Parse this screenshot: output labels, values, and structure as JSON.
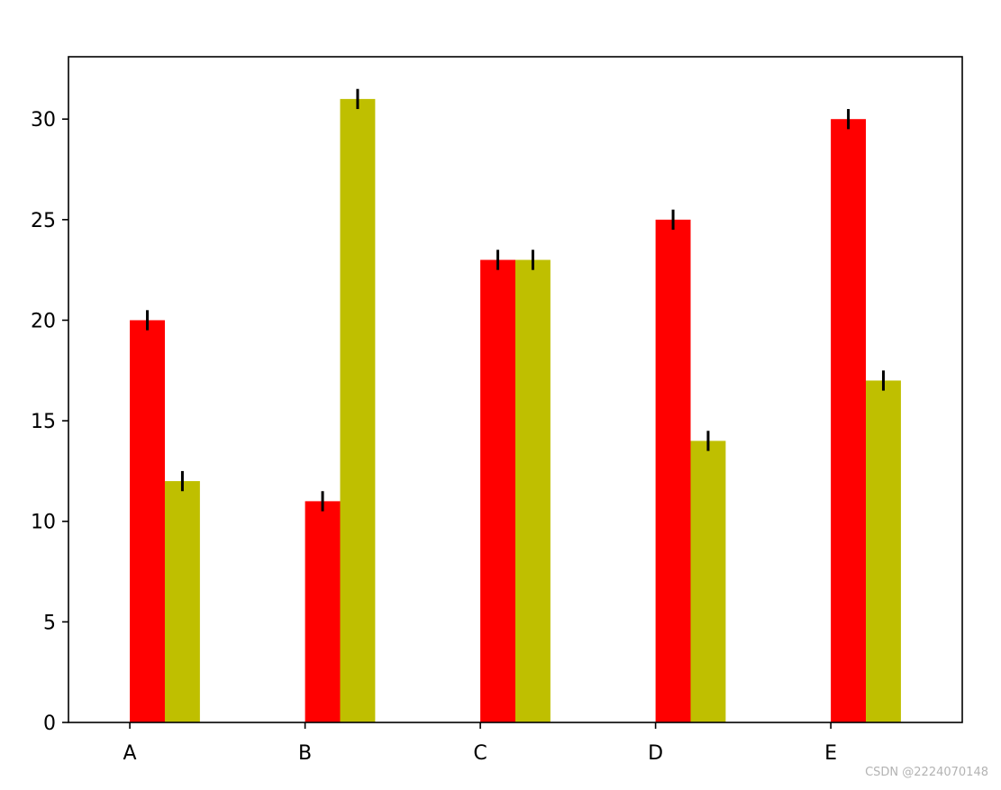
{
  "chart_data": {
    "type": "bar",
    "categories": [
      "A",
      "B",
      "C",
      "D",
      "E"
    ],
    "series": [
      {
        "values": [
          20,
          11,
          23,
          25,
          30
        ],
        "error": [
          0.5,
          0.5,
          0.5,
          0.5,
          0.5
        ],
        "color": "#ff0000"
      },
      {
        "values": [
          12,
          31,
          23,
          14,
          17
        ],
        "error": [
          0.5,
          0.5,
          0.5,
          0.5,
          0.5
        ],
        "color": "#bfbf00"
      }
    ],
    "title": "",
    "xlabel": "",
    "ylabel": "",
    "ylim": [
      0,
      33.1
    ],
    "yticks": [
      0,
      5,
      10,
      15,
      20,
      25,
      30
    ],
    "grid": false,
    "error_bar_color": "#000000"
  },
  "watermark": "CSDN @2224070148"
}
